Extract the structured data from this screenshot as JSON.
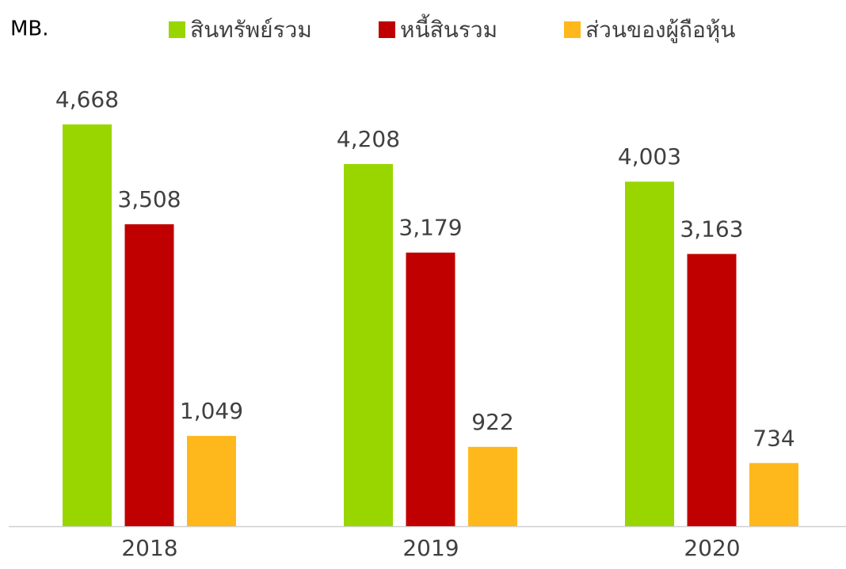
{
  "chart_data": {
    "type": "bar",
    "title": "MB.",
    "categories": [
      "2018",
      "2019",
      "2020"
    ],
    "series": [
      {
        "name": "สินทรัพย์รวม",
        "color": "#99d600",
        "values": [
          4668,
          4208,
          4003
        ],
        "value_labels": [
          "4,668",
          "4,208",
          "4,003"
        ]
      },
      {
        "name": "หนี้สินรวม",
        "color": "#c00000",
        "values": [
          3508,
          3179,
          3163
        ],
        "value_labels": [
          "3,508",
          "3,179",
          "3,163"
        ]
      },
      {
        "name": "ส่วนของผู้ถือหุ้น",
        "color": "#ffb81c",
        "values": [
          1049,
          922,
          734
        ],
        "value_labels": [
          "1,049",
          "922",
          "734"
        ]
      }
    ],
    "legend": "top"
  }
}
